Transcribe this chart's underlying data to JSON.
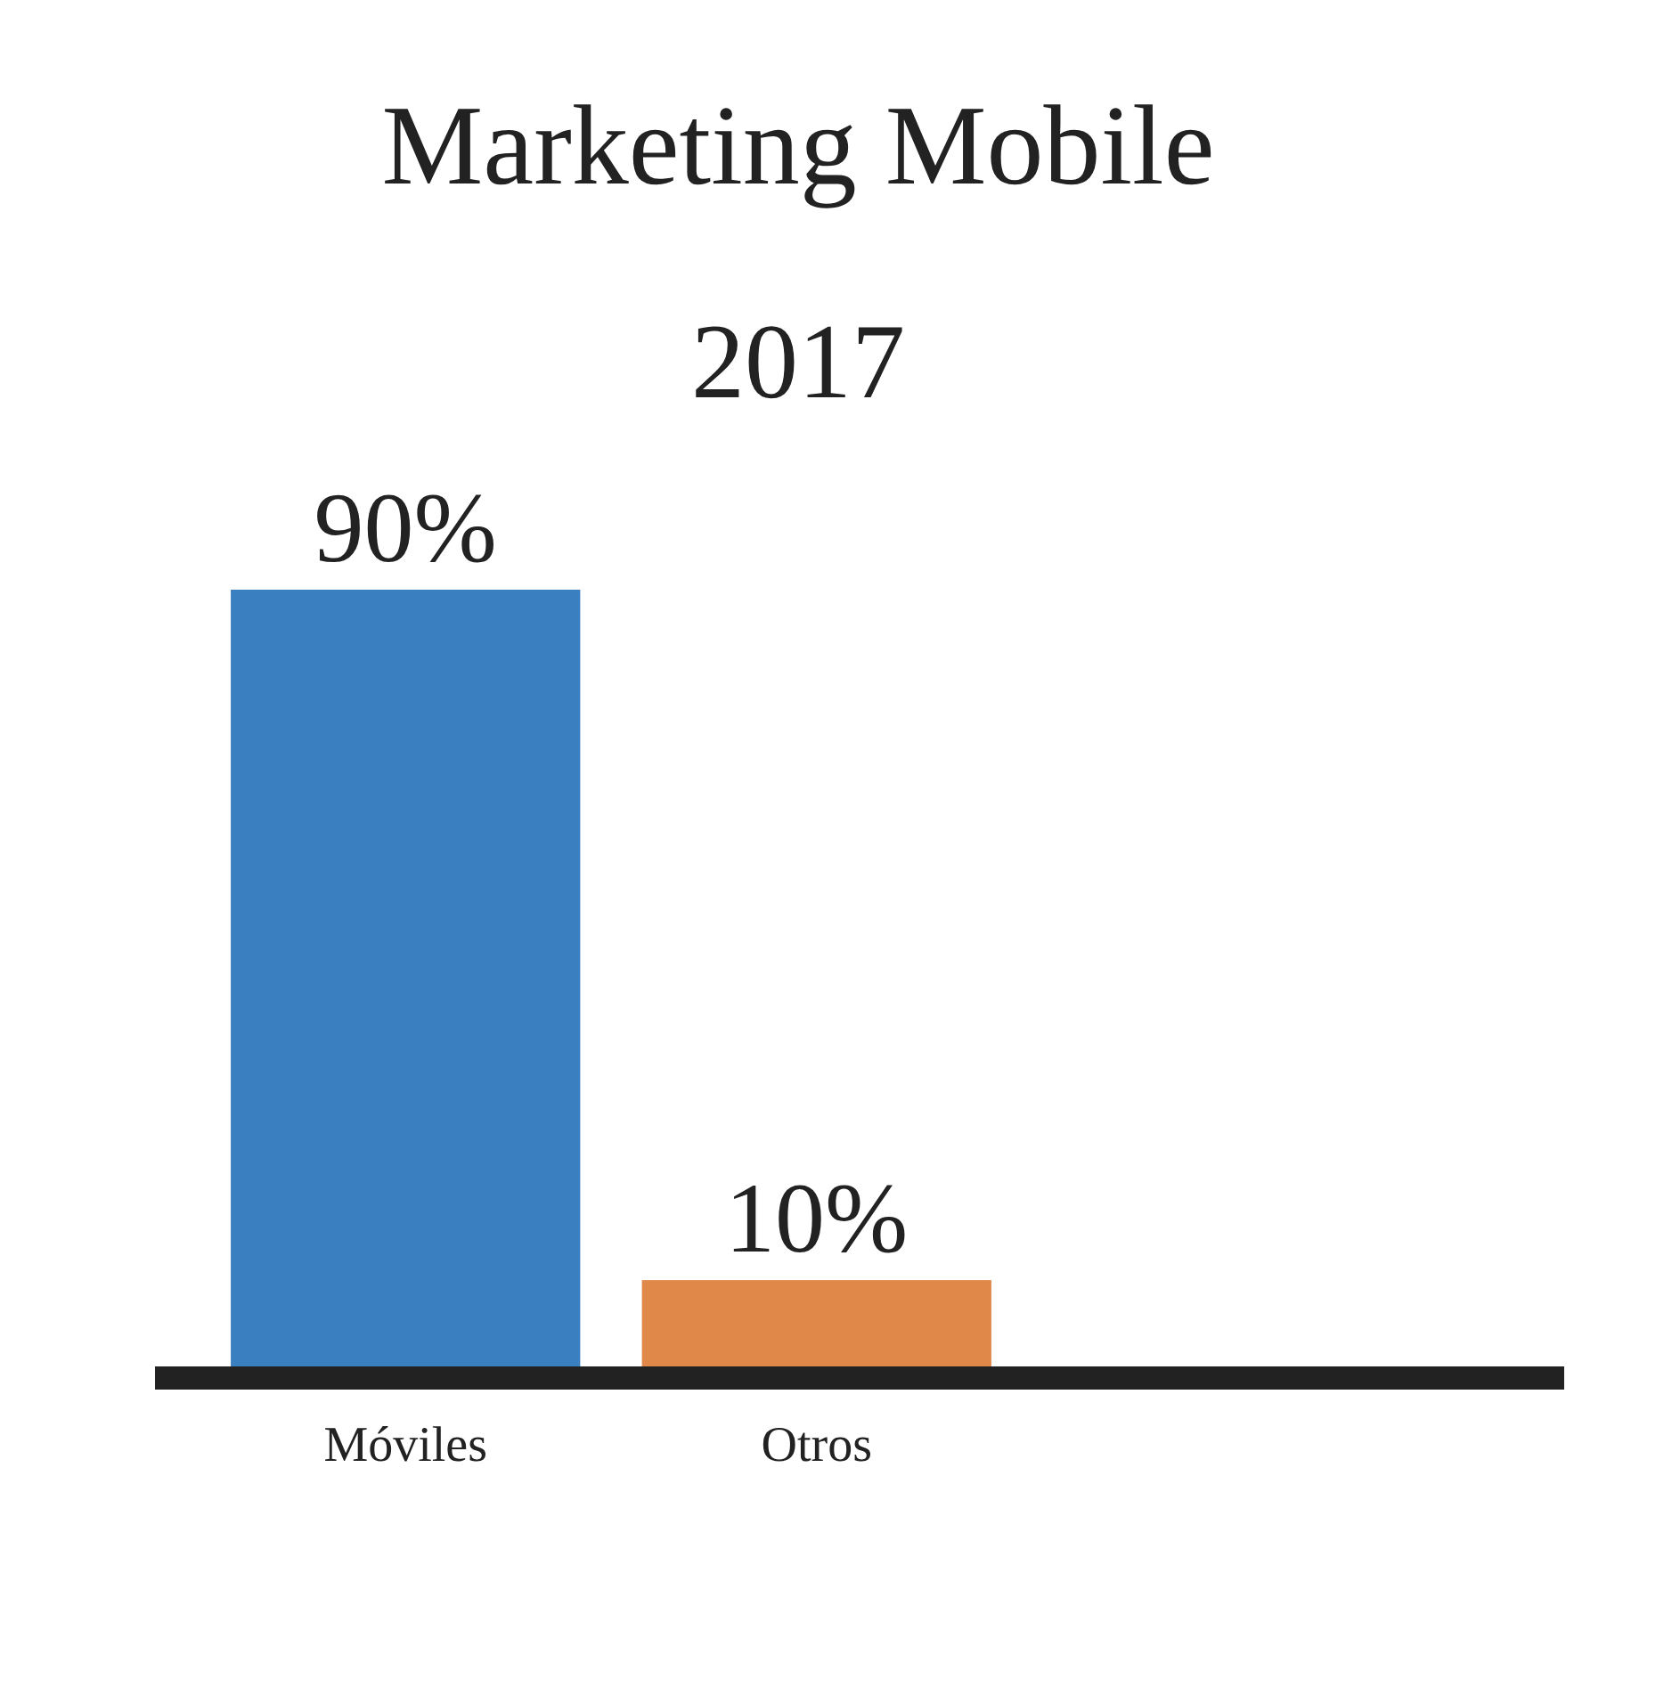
{
  "chart_data": {
    "type": "bar",
    "title": "Marketing Mobile",
    "subtitle": "2017",
    "categories": [
      "Móviles",
      "Otros"
    ],
    "values": [
      90,
      10
    ],
    "colors": [
      "#3a80c0",
      "#e0884a"
    ],
    "value_labels": [
      "90%",
      "10%"
    ]
  }
}
